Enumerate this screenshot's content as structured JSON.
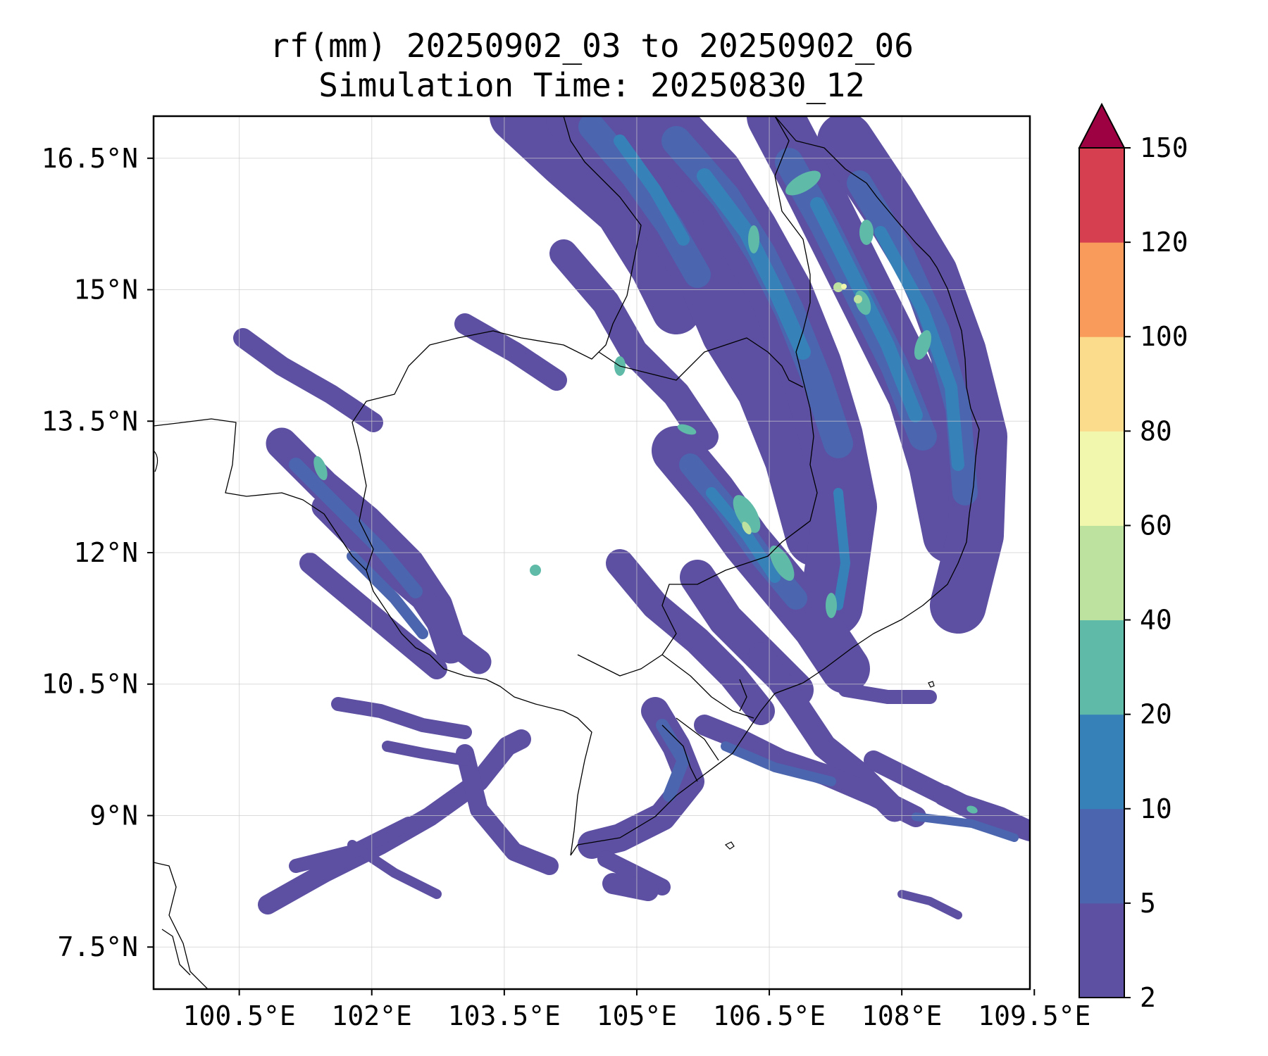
{
  "title": {
    "line1": "rf(mm) 20250902_03 to 20250902_06",
    "line2": "Simulation Time: 20250830_12"
  },
  "map": {
    "lon_ticks": [
      "100.5°E",
      "102°E",
      "103.5°E",
      "105°E",
      "106.5°E",
      "108°E",
      "109.5°E"
    ],
    "lat_ticks": [
      "16.5°N",
      "15°N",
      "13.5°N",
      "12°N",
      "10.5°N",
      "9°N",
      "7.5°N"
    ],
    "lon_values": [
      100.5,
      102,
      103.5,
      105,
      106.5,
      108,
      109.5
    ],
    "lat_values": [
      16.5,
      15,
      13.5,
      12,
      10.5,
      9,
      7.5
    ],
    "extent": {
      "lon": [
        99.53,
        109.45
      ],
      "lat": [
        7.02,
        16.98
      ]
    },
    "gridlines": true,
    "coastline_color": "#000000"
  },
  "colorbar": {
    "labels": [
      "2",
      "5",
      "10",
      "20",
      "40",
      "60",
      "80",
      "100",
      "120",
      "150"
    ],
    "colors": [
      "#5d4fa2",
      "#4b65af",
      "#3781b9",
      "#5fbba8",
      "#bde2a0",
      "#f1f8ad",
      "#fbdc8c",
      "#f99b5b",
      "#d63f4f",
      "#9e0142"
    ],
    "extend": "max"
  }
}
